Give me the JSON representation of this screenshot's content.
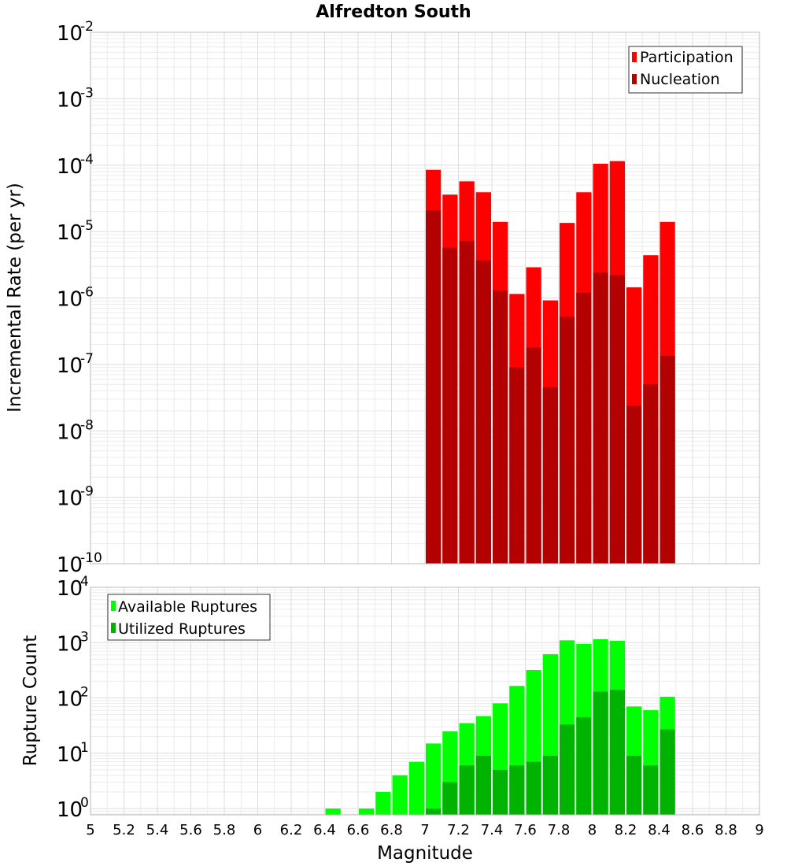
{
  "chart_data": [
    {
      "type": "bar",
      "title": "Alfredton South",
      "ylabel": "Incremental Rate (per yr)",
      "xlabel": "",
      "yscale": "log",
      "ylim": [
        1e-10,
        0.01
      ],
      "xlim": [
        5,
        9
      ],
      "grid": true,
      "legend_position": "top-right",
      "y_tick_labels": [
        {
          "base": "10",
          "exp": "-10",
          "value": 1e-10
        },
        {
          "base": "10",
          "exp": "-9",
          "value": 1e-09
        },
        {
          "base": "10",
          "exp": "-8",
          "value": 1e-08
        },
        {
          "base": "10",
          "exp": "-7",
          "value": 1e-07
        },
        {
          "base": "10",
          "exp": "-6",
          "value": 1e-06
        },
        {
          "base": "10",
          "exp": "-5",
          "value": 1e-05
        },
        {
          "base": "10",
          "exp": "-4",
          "value": 0.0001
        },
        {
          "base": "10",
          "exp": "-3",
          "value": 0.001
        },
        {
          "base": "10",
          "exp": "-2",
          "value": 0.01
        }
      ],
      "x": [
        7.0,
        7.1,
        7.2,
        7.3,
        7.4,
        7.5,
        7.6,
        7.7,
        7.8,
        7.9,
        8.0,
        8.1,
        8.2,
        8.3,
        8.4
      ],
      "series": [
        {
          "name": "Participation",
          "color": "#ff0000",
          "values": [
            8.5e-05,
            3.6e-05,
            5.7e-05,
            3.9e-05,
            1.4e-05,
            1.15e-06,
            2.9e-06,
            9.2e-07,
            1.35e-05,
            3.9e-05,
            0.000105,
            0.000115,
            1.45e-06,
            4.4e-06,
            1.4e-05
          ]
        },
        {
          "name": "Nucleation",
          "color": "#b30000",
          "values": [
            2.1e-05,
            5.7e-06,
            7.2e-06,
            3.7e-06,
            1.3e-06,
            9e-08,
            1.8e-07,
            4.5e-08,
            5.2e-07,
            1.2e-06,
            2.4e-06,
            2.2e-06,
            2.4e-08,
            5e-08,
            1.35e-07
          ]
        }
      ]
    },
    {
      "type": "bar",
      "title": "",
      "ylabel": "Rupture Count",
      "xlabel": "Magnitude",
      "yscale": "log",
      "ylim": [
        0.77,
        10000
      ],
      "xlim": [
        5,
        9
      ],
      "grid": true,
      "legend_position": "top-left",
      "y_tick_labels": [
        {
          "base": "10",
          "exp": "0",
          "value": 1
        },
        {
          "base": "10",
          "exp": "1",
          "value": 10
        },
        {
          "base": "10",
          "exp": "2",
          "value": 100
        },
        {
          "base": "10",
          "exp": "3",
          "value": 1000
        },
        {
          "base": "10",
          "exp": "4",
          "value": 10000
        }
      ],
      "x_tick_labels": [
        "5",
        "5.2",
        "5.4",
        "5.6",
        "5.8",
        "6",
        "6.2",
        "6.4",
        "6.6",
        "6.8",
        "7",
        "7.2",
        "7.4",
        "7.6",
        "7.8",
        "8",
        "8.2",
        "8.4",
        "8.6",
        "8.8",
        "9"
      ],
      "x": [
        6.4,
        6.5,
        6.6,
        6.7,
        6.8,
        6.9,
        7.0,
        7.1,
        7.2,
        7.3,
        7.4,
        7.5,
        7.6,
        7.7,
        7.8,
        7.9,
        8.0,
        8.1,
        8.2,
        8.3,
        8.4
      ],
      "series": [
        {
          "name": "Available Ruptures",
          "color": "#00ff00",
          "values": [
            1,
            null,
            1,
            2,
            4,
            7,
            15,
            25,
            35,
            47,
            80,
            165,
            320,
            620,
            1100,
            950,
            1150,
            1080,
            70,
            60,
            105
          ]
        },
        {
          "name": "Utilized Ruptures",
          "color": "#00b300",
          "values": [
            null,
            null,
            null,
            null,
            null,
            null,
            1,
            3,
            6,
            9,
            5,
            6,
            7,
            9,
            33,
            45,
            130,
            140,
            9,
            6,
            27
          ]
        }
      ]
    }
  ]
}
